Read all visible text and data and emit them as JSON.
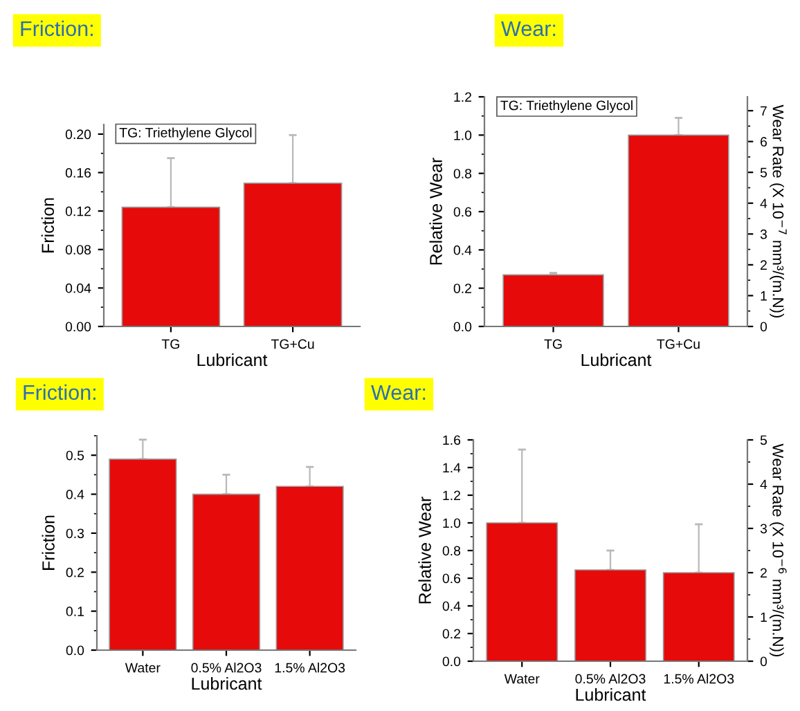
{
  "chart_data": [
    {
      "type": "bar",
      "title": "Friction:",
      "xlabel": "Lubricant",
      "ylabel": "Friction",
      "categories": [
        "TG",
        "TG+Cu"
      ],
      "values": [
        0.124,
        0.149
      ],
      "errors": [
        [
          0.124,
          0.175
        ],
        [
          0.149,
          0.199
        ]
      ],
      "color": "#e60a0a",
      "ylim": [
        0,
        0.21
      ],
      "yticks": [
        {
          "value": 0,
          "label": "0.00"
        },
        0.04,
        0.08,
        0.12,
        0.16,
        {
          "value": 0.2,
          "label": "0.20"
        }
      ],
      "annotations": [
        "TG: Triethylene Glycol"
      ]
    },
    {
      "type": "bar",
      "title": "Wear:",
      "xlabel": "Lubricant",
      "ylabel": "Relative Wear",
      "y2label": "Wear Rate (X 10$^{−7}$ mm³/(m.N))",
      "categories": [
        "TG",
        "TG+Cu"
      ],
      "values": [
        0.27,
        1.0
      ],
      "errors": [
        [
          0.27,
          0.28
        ],
        [
          1.0,
          1.09
        ]
      ],
      "color": "#e60a0a",
      "ylim": [
        0,
        1.2
      ],
      "yticks": [
        {
          "value": 0,
          "label": "0.0"
        },
        0.2,
        0.4,
        0.6,
        0.8,
        {
          "value": 1,
          "label": "1.0"
        },
        1.2
      ],
      "y2lim": [
        0,
        7.45
      ],
      "y2ticks": [
        0,
        1,
        2,
        3,
        4,
        5,
        6,
        7
      ],
      "annotations": [
        "TG: Triethylene Glycol"
      ]
    },
    {
      "type": "bar",
      "title": "Friction:",
      "xlabel": "Lubricant",
      "ylabel": "Friction",
      "categories": [
        "Water",
        "0.5% Al2O3",
        "1.5% Al2O3"
      ],
      "values": [
        0.49,
        0.4,
        0.42
      ],
      "errors": [
        [
          0.49,
          0.54
        ],
        [
          0.4,
          0.45
        ],
        [
          0.42,
          0.47
        ]
      ],
      "color": "#e60a0a",
      "ylim": [
        0,
        0.55
      ],
      "yticks": [
        {
          "value": 0,
          "label": "0.0"
        },
        0.1,
        0.2,
        0.3,
        0.4,
        0.5
      ]
    },
    {
      "type": "bar",
      "title": "Wear:",
      "xlabel": "Lubricant",
      "ylabel": "Relative Wear",
      "y2label": "Wear Rate (X 10$^{−6}$ mm³/(m.N))",
      "categories": [
        "Water",
        "0.5% Al2O3",
        "1.5% Al2O3"
      ],
      "values": [
        1.0,
        0.66,
        0.64
      ],
      "errors": [
        [
          1.0,
          1.53
        ],
        [
          0.66,
          0.8
        ],
        [
          0.64,
          0.99
        ]
      ],
      "color": "#e60a0a",
      "ylim": [
        0,
        1.6
      ],
      "yticks": [
        {
          "value": 0,
          "label": "0.0"
        },
        0.2,
        0.4,
        0.6,
        0.8,
        {
          "value": 1,
          "label": "1.0"
        },
        1.2,
        1.4,
        1.6
      ],
      "y2lim": [
        0,
        5
      ],
      "y2ticks": [
        0,
        1,
        2,
        3,
        4,
        5
      ]
    }
  ]
}
